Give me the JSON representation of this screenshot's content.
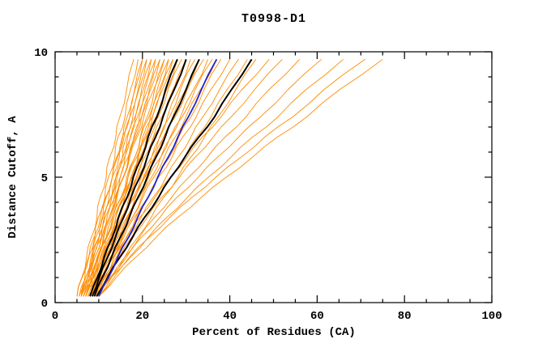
{
  "chart_data": {
    "type": "line",
    "title": "T0998-D1",
    "xlabel": "Percent of Residues (CA)",
    "ylabel": "Distance Cutoff, A",
    "xlim": [
      0,
      100
    ],
    "ylim": [
      0,
      10
    ],
    "x_major_ticks": [
      0,
      20,
      40,
      60,
      80,
      100
    ],
    "x_minor_step": 5,
    "y_major_ticks": [
      0,
      5,
      10
    ],
    "y_minor_step": 1,
    "grid": false,
    "legend": "none",
    "frame": "box-with-inward-ticks",
    "color_map": {
      "o": "#ff8c00",
      "k": "#000000",
      "b": "#2222cc"
    },
    "width_map": {
      "o": 0.9,
      "k": 2.0,
      "b": 1.8
    },
    "color_meaning": {
      "o": "ensemble-prediction-curve",
      "k": "highlighted-prediction-curve",
      "b": "reference-prediction-curve"
    },
    "y_samples": [
      0.25,
      1,
      1.8,
      2.6,
      3.4,
      4.2,
      5,
      5.8,
      6.6,
      7.4,
      8.5,
      9.7
    ],
    "series": [
      {
        "c": "o",
        "x": [
          5,
          6.1,
          7.2,
          8.3,
          9.6,
          10.3,
          11.7,
          12.5,
          13.9,
          14.8,
          16.4,
          18
        ]
      },
      {
        "c": "o",
        "x": [
          5.5,
          6.8,
          7.6,
          9.1,
          9.9,
          11.4,
          12.2,
          13.7,
          14.4,
          16,
          17.3,
          19
        ]
      },
      {
        "c": "o",
        "x": [
          6,
          7,
          8.5,
          9.3,
          10.9,
          11.7,
          13.1,
          14.1,
          15.5,
          16.5,
          18.2,
          20
        ]
      },
      {
        "c": "o",
        "x": [
          6.5,
          7.8,
          8.6,
          10.1,
          10.8,
          12.4,
          13.1,
          14.7,
          15.4,
          17.1,
          18.3,
          20
        ]
      },
      {
        "c": "o",
        "x": [
          5,
          6.2,
          7.7,
          8.9,
          10.4,
          11.6,
          13.1,
          14.3,
          15.8,
          17.1,
          19,
          21
        ]
      },
      {
        "c": "o",
        "x": [
          7,
          8.3,
          9.1,
          10.6,
          11.5,
          13,
          13.9,
          15.4,
          16.3,
          17.8,
          19.2,
          21
        ]
      },
      {
        "c": "o",
        "x": [
          6,
          7.4,
          8.5,
          10.1,
          11.2,
          12.8,
          13.9,
          15.5,
          16.6,
          18.3,
          19.8,
          22
        ]
      },
      {
        "c": "o",
        "x": [
          7.5,
          8.6,
          9.9,
          11,
          12.4,
          13.5,
          14.9,
          16,
          17.3,
          18.4,
          20.2,
          22
        ]
      },
      {
        "c": "o",
        "x": [
          5.5,
          7,
          8.2,
          10,
          11.2,
          12.9,
          14.2,
          15.9,
          17.2,
          18.9,
          20.6,
          23
        ]
      },
      {
        "c": "o",
        "x": [
          8,
          9.1,
          10.5,
          11.7,
          13.1,
          14.2,
          15.6,
          16.8,
          18.2,
          19.3,
          21.2,
          23
        ]
      },
      {
        "c": "o",
        "x": [
          6,
          7.5,
          8.8,
          10.6,
          11.9,
          13.7,
          14.9,
          16.7,
          18,
          19.8,
          21.6,
          24
        ]
      },
      {
        "c": "o",
        "x": [
          7,
          8.3,
          9.8,
          11.2,
          12.7,
          14,
          15.7,
          16.9,
          18.5,
          19.8,
          21.9,
          24
        ]
      },
      {
        "c": "o",
        "x": [
          8.5,
          9.9,
          11,
          12.7,
          13.9,
          15.5,
          16.7,
          18.3,
          19.5,
          21.1,
          22.8,
          25
        ]
      },
      {
        "c": "o",
        "x": [
          6,
          7.4,
          9.1,
          10.7,
          12.4,
          13.9,
          15.6,
          17.1,
          18.8,
          20.3,
          22.6,
          25
        ]
      },
      {
        "c": "o",
        "x": [
          7,
          8.6,
          9.9,
          11.9,
          13.2,
          15.1,
          16.4,
          18.3,
          19.6,
          21.5,
          23.4,
          26
        ]
      },
      {
        "c": "o",
        "x": [
          9,
          10.3,
          11.8,
          13.2,
          14.7,
          16,
          17.7,
          18.9,
          20.5,
          21.8,
          23.9,
          26
        ]
      },
      {
        "c": "o",
        "x": [
          6.5,
          8.2,
          9.7,
          11.7,
          13.2,
          15.2,
          16.7,
          18.7,
          20.1,
          22.2,
          24.2,
          27
        ]
      },
      {
        "c": "o",
        "x": [
          8,
          9.4,
          11.1,
          12.7,
          14.4,
          15.9,
          17.6,
          19.1,
          20.8,
          22.3,
          24.6,
          27
        ]
      },
      {
        "c": "o",
        "x": [
          7,
          8.8,
          10.3,
          12.4,
          13.9,
          15.9,
          17.4,
          19.5,
          21,
          23.1,
          25.2,
          28
        ]
      },
      {
        "c": "o",
        "x": [
          9,
          10.4,
          12.1,
          13.7,
          15.4,
          16.9,
          18.6,
          20.1,
          21.8,
          23.3,
          25.6,
          28
        ]
      },
      {
        "c": "o",
        "x": [
          6,
          7.9,
          9.6,
          11.9,
          13.5,
          15.8,
          17.4,
          19.7,
          21.3,
          23.6,
          25.9,
          29
        ]
      },
      {
        "c": "o",
        "x": [
          8,
          9.9,
          11.4,
          13.6,
          15.2,
          17.3,
          18.9,
          21.1,
          22.6,
          24.8,
          27,
          30
        ]
      },
      {
        "c": "o",
        "x": [
          7,
          8.7,
          10.8,
          12.7,
          14.7,
          16.6,
          18.6,
          20.5,
          22.5,
          24.4,
          27.1,
          30
        ]
      },
      {
        "c": "o",
        "x": [
          9.5,
          11.1,
          13,
          14.8,
          16.7,
          18.4,
          20.4,
          22.1,
          24,
          25.7,
          28.3,
          31
        ]
      },
      {
        "c": "o",
        "x": [
          7.5,
          9.6,
          11.3,
          13.7,
          15.5,
          17.9,
          19.7,
          22.1,
          23.9,
          26.2,
          28.7,
          32
        ]
      },
      {
        "c": "o",
        "x": [
          8,
          9.9,
          12.1,
          14.2,
          16.4,
          18.4,
          20.6,
          22.7,
          24.9,
          26.9,
          29.9,
          33
        ]
      },
      {
        "c": "o",
        "x": [
          6.5,
          8.8,
          10.8,
          13.5,
          15.5,
          18.2,
          20.2,
          22.8,
          24.8,
          27.5,
          30.3,
          34
        ]
      },
      {
        "c": "o",
        "x": [
          9,
          11,
          13.3,
          15.4,
          17.7,
          19.8,
          22.1,
          24.2,
          26.5,
          28.7,
          31.7,
          35
        ]
      },
      {
        "c": "o",
        "x": [
          7,
          9.4,
          11.5,
          14.4,
          16.5,
          19.3,
          21.4,
          24.2,
          26.3,
          29.1,
          32.1,
          36
        ]
      },
      {
        "c": "o",
        "x": [
          8,
          10.2,
          12.7,
          15.2,
          17.7,
          20.1,
          22.6,
          25,
          27.5,
          29.9,
          33.3,
          37
        ]
      },
      {
        "c": "o",
        "x": [
          9,
          11.4,
          13.5,
          16.4,
          18.5,
          21.3,
          23.4,
          26.2,
          28.3,
          31.1,
          34.1,
          38
        ]
      },
      {
        "c": "o",
        "x": [
          7.5,
          10.2,
          12.6,
          15.7,
          18.1,
          21.3,
          23.7,
          26.8,
          29.2,
          32.3,
          35.7,
          40
        ]
      },
      {
        "c": "o",
        "x": [
          8.5,
          11.1,
          14,
          16.8,
          19.7,
          22.5,
          25.4,
          28.2,
          31.1,
          33.8,
          37.7,
          42
        ]
      },
      {
        "c": "o",
        "x": [
          9,
          11.9,
          14.5,
          17.9,
          20.5,
          23.8,
          26.4,
          29.8,
          32.4,
          35.7,
          39.4,
          44
        ]
      },
      {
        "c": "o",
        "x": [
          10,
          12.8,
          15.9,
          18.9,
          22,
          24.9,
          28.1,
          31.1,
          34.2,
          37.3,
          41.4,
          46
        ]
      },
      {
        "c": "o",
        "x": [
          8,
          10.6,
          13.2,
          16.3,
          19.4,
          22.9,
          26.4,
          30.2,
          33.7,
          38,
          42.8,
          49
        ]
      },
      {
        "c": "o",
        "x": [
          9,
          11.5,
          14.7,
          17.5,
          21.1,
          24.4,
          28.5,
          32.1,
          36.2,
          40.3,
          45.7,
          52
        ]
      },
      {
        "c": "o",
        "x": [
          10,
          12.9,
          15.9,
          19.3,
          22.8,
          26.7,
          30.6,
          34.9,
          38.9,
          43.7,
          49,
          56
        ]
      },
      {
        "c": "o",
        "x": [
          9.5,
          12.5,
          16.3,
          19.7,
          24,
          27.9,
          32.8,
          37.2,
          42,
          47,
          53.4,
          61
        ]
      },
      {
        "c": "o",
        "x": [
          10,
          13.5,
          17.2,
          21.3,
          25.6,
          30.3,
          35.1,
          40.3,
          45.2,
          51,
          57.5,
          66
        ]
      },
      {
        "c": "o",
        "x": [
          9,
          12.8,
          17,
          21.5,
          26.3,
          31.4,
          36.8,
          42.6,
          48,
          54.4,
          61.6,
          71
        ]
      },
      {
        "c": "o",
        "x": [
          10,
          14,
          18.4,
          23.1,
          28.1,
          33.5,
          39.2,
          45.2,
          50.9,
          57.6,
          65.2,
          75
        ]
      },
      {
        "c": "k",
        "x": [
          8,
          9.7,
          11.2,
          13.1,
          14.5,
          16.5,
          17.9,
          19.9,
          21.3,
          23.3,
          25.3,
          28
        ]
      },
      {
        "c": "k",
        "x": [
          8.5,
          10.1,
          12,
          13.8,
          15.7,
          17.4,
          19.4,
          21.1,
          23,
          24.7,
          27.3,
          30
        ]
      },
      {
        "c": "k",
        "x": [
          9,
          10.8,
          12.9,
          14.9,
          17,
          19,
          21.1,
          23.1,
          25.2,
          27.1,
          30,
          33
        ]
      },
      {
        "c": "k",
        "x": [
          9.5,
          12,
          14.8,
          17.7,
          20.5,
          23.7,
          26.5,
          29.7,
          32.9,
          36.5,
          40.4,
          45
        ]
      },
      {
        "c": "b",
        "x": [
          10,
          12.2,
          14.3,
          16.8,
          18.9,
          21.3,
          23.5,
          25.9,
          28.1,
          30.5,
          33.5,
          37
        ]
      }
    ]
  }
}
